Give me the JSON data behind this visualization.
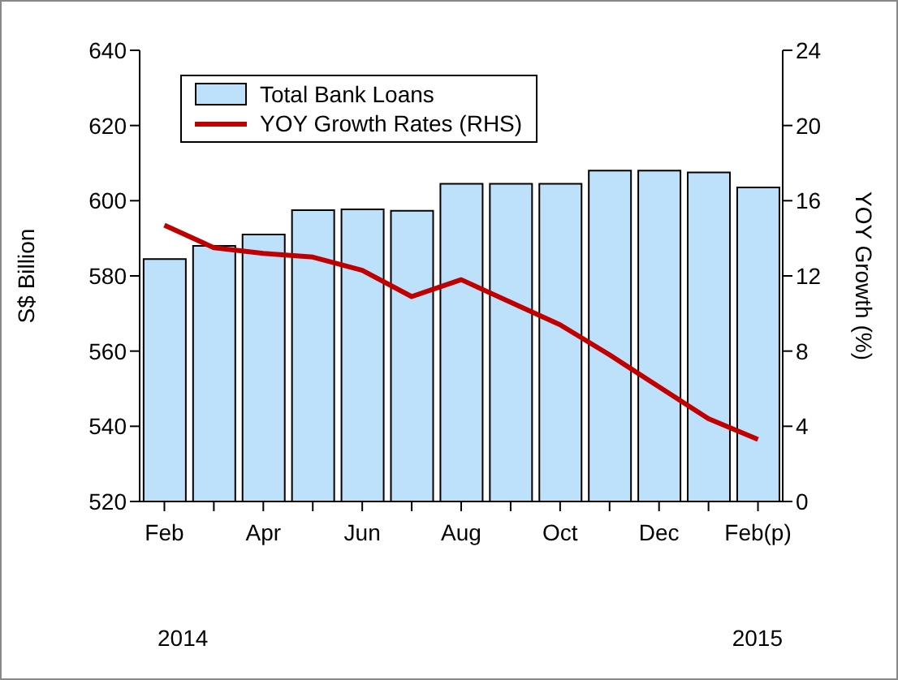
{
  "chart_data": {
    "type": "bar",
    "categories": [
      "Feb",
      null,
      "Apr",
      null,
      "Jun",
      null,
      "Aug",
      null,
      "Oct",
      null,
      "Dec",
      null,
      "Feb(p)"
    ],
    "ylabel": "S$ Billion",
    "y2label": "YOY Growth (%)",
    "series": [
      {
        "name": "Total Bank Loans",
        "color": "#bde0fb",
        "values": [
          584.5,
          588,
          591,
          597.5,
          597.7,
          597.3,
          604.5,
          604.5,
          604.5,
          608,
          608,
          607.5,
          603.5
        ]
      },
      {
        "name": "YOY Growth Rates (RHS)",
        "type": "line",
        "axis": "y2",
        "color": "#c00000",
        "values": [
          14.7,
          13.5,
          13.2,
          13.0,
          12.3,
          10.9,
          11.8,
          10.6,
          9.4,
          7.8,
          6.1,
          4.4,
          3.3
        ]
      }
    ],
    "ylim": [
      520,
      640
    ],
    "yticks": [
      520,
      540,
      560,
      580,
      600,
      620,
      640
    ],
    "y2lim": [
      0,
      24
    ],
    "y2ticks": [
      0,
      4,
      8,
      12,
      16,
      20,
      24
    ],
    "annotations": [
      "2014",
      "2015"
    ],
    "legend": "top left",
    "grid": false,
    "marker": "none"
  }
}
